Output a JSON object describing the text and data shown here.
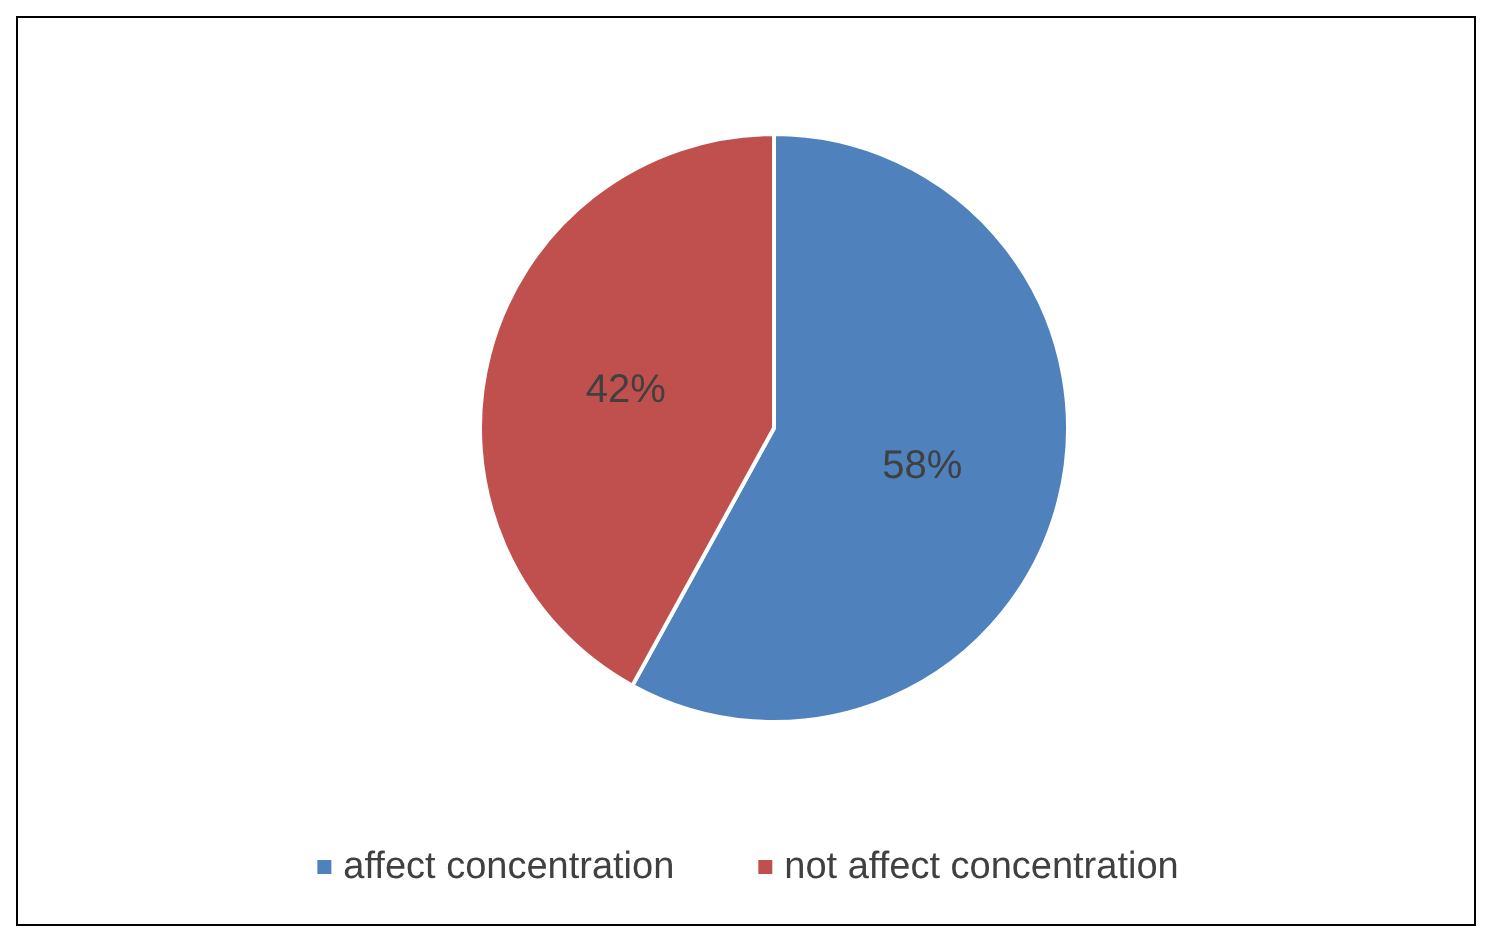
{
  "chart_data": {
    "type": "pie",
    "categories": [
      "affect concentration",
      "not affect concentration"
    ],
    "values": [
      58,
      42
    ],
    "colors": [
      "#4f81bd",
      "#c0504d"
    ],
    "value_labels": [
      "58%",
      "42%"
    ],
    "legend": "bottom"
  }
}
